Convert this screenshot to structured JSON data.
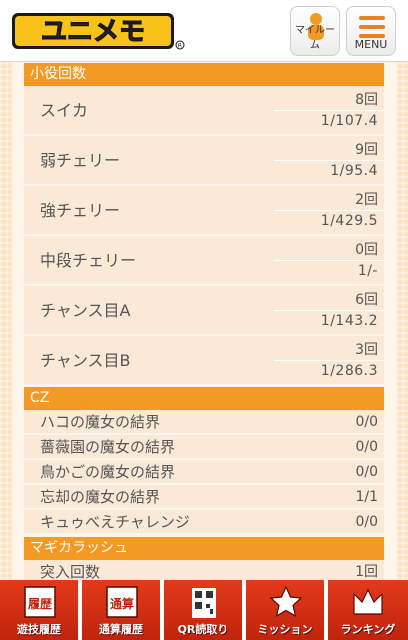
{
  "header": {
    "logo_text": "ユニメモ",
    "myroom_label": "マイルーム",
    "menu_label": "MENU"
  },
  "sections": {
    "koyaku": {
      "title": "小役回数",
      "rows": [
        {
          "name": "スイカ",
          "count": "8回",
          "ratio": "1/107.4"
        },
        {
          "name": "弱チェリー",
          "count": "9回",
          "ratio": "1/95.4"
        },
        {
          "name": "強チェリー",
          "count": "2回",
          "ratio": "1/429.5"
        },
        {
          "name": "中段チェリー",
          "count": "0回",
          "ratio": "1/-"
        },
        {
          "name": "チャンス目A",
          "count": "6回",
          "ratio": "1/143.2"
        },
        {
          "name": "チャンス目B",
          "count": "3回",
          "ratio": "1/286.3"
        }
      ]
    },
    "cz": {
      "title": "CZ",
      "rows": [
        {
          "name": "ハコの魔女の結界",
          "value": "0/0"
        },
        {
          "name": "薔薇園の魔女の結界",
          "value": "0/0"
        },
        {
          "name": "鳥かごの魔女の結界",
          "value": "0/0"
        },
        {
          "name": "忘却の魔女の結界",
          "value": "1/1"
        },
        {
          "name": "キュゥべえチャレンジ",
          "value": "0/0"
        }
      ]
    },
    "magika": {
      "title": "マギカラッシュ",
      "rows": [
        {
          "name": "突入回数",
          "value": "1回"
        }
      ]
    }
  },
  "bottom_nav": [
    {
      "icon_text": "履歴",
      "label": "遊技履歴",
      "icon": "history-icon"
    },
    {
      "icon_text": "通算",
      "label": "通算履歴",
      "icon": "total-icon"
    },
    {
      "icon_text": "",
      "label": "QR読取り",
      "icon": "qr-icon"
    },
    {
      "icon_text": "",
      "label": "ミッション",
      "icon": "star-icon"
    },
    {
      "icon_text": "",
      "label": "ランキング",
      "icon": "crown-icon"
    }
  ],
  "colors": {
    "accent": "#f39a25",
    "nav_red": "#d12f15",
    "row_bg": "#fae9d7"
  }
}
